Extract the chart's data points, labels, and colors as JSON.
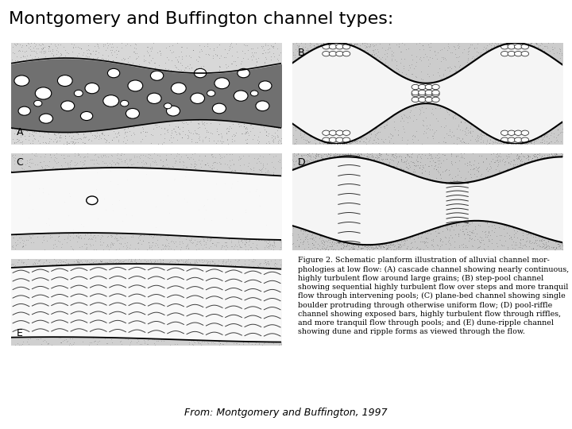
{
  "title": "Montgomery and Buffington channel types:",
  "title_fontsize": 16,
  "title_fontweight": "normal",
  "background_color": "#ffffff",
  "caption": "Figure 2. Schematic planform illustration of alluvial channel mor-\nphologies at low flow: (A) cascade channel showing nearly continuous,\nhighly turbulent flow around large grains; (B) step-pool channel\nshowing sequential highly turbulent flow over steps and more tranquil\nflow through intervening pools; (C) plane-bed channel showing single\nboulder protruding through otherwise uniform flow; (D) pool-riffle\nchannel showing exposed bars, highly turbulent flow through riffles,\nand more tranquil flow through pools; and (E) dune-ripple channel\nshowing dune and ripple forms as viewed through the flow.",
  "caption_fontsize": 6.8,
  "source_text": "From: Montgomery and Buffington, 1997",
  "source_fontsize": 9,
  "panel_bg": "#ffffff",
  "border_color": "#000000",
  "bank_color": "#c8c8c8",
  "bank_stipple_color": "#888888"
}
